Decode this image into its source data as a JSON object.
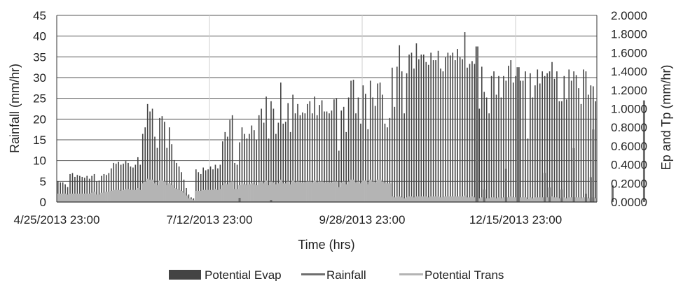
{
  "chart_data": {
    "type": "bar",
    "title": "",
    "xlabel": "Time (hrs)",
    "ylabel_left": "Rainfall (mm/hr)",
    "ylabel_right": "Ep and Tp (mm/hr)",
    "y_left_range": [
      0,
      45
    ],
    "y_right_range": [
      0,
      2.0
    ],
    "y_left_ticks": [
      "0",
      "5",
      "10",
      "15",
      "20",
      "25",
      "30",
      "35",
      "40",
      "45"
    ],
    "y_right_ticks": [
      "0.0000",
      "0.2000",
      "0.4000",
      "0.6000",
      "0.8000",
      "1.0000",
      "1.2000",
      "1.4000",
      "1.6000",
      "1.8000",
      "2.0000"
    ],
    "x_tick_labels": [
      "4/25/2013 23:00",
      "7/12/2013 23:00",
      "9/28/2013 23:00",
      "12/15/2013 23:00"
    ],
    "grid": "horizontal and vertical",
    "legend_position": "bottom",
    "series": [
      {
        "name": "Potential Evap",
        "axis": "right",
        "color": "#444444",
        "note": "daily peak value (mm/hr)",
        "values": [
          0.22,
          0.21,
          0.21,
          0.19,
          0.16,
          0.3,
          0.31,
          0.27,
          0.29,
          0.28,
          0.27,
          0.26,
          0.28,
          0.25,
          0.28,
          0.3,
          0.22,
          0.23,
          0.28,
          0.3,
          0.29,
          0.31,
          0.36,
          0.42,
          0.41,
          0.43,
          0.4,
          0.41,
          0.44,
          0.42,
          0.38,
          0.37,
          0.4,
          0.48,
          0.4,
          0.73,
          0.8,
          1.05,
          0.97,
          1.0,
          0.7,
          0.58,
          0.9,
          0.92,
          0.86,
          0.58,
          0.8,
          0.62,
          0.45,
          0.42,
          0.38,
          0.32,
          0.24,
          0.15,
          0.08,
          0.05,
          0.04,
          0.35,
          0.32,
          0.3,
          0.37,
          0.34,
          0.35,
          0.38,
          0.35,
          0.4,
          0.36,
          0.4,
          0.65,
          0.75,
          0.7,
          0.88,
          0.93,
          0.42,
          0.4,
          0.64,
          0.8,
          0.73,
          0.68,
          0.73,
          0.82,
          0.77,
          0.67,
          0.93,
          1.0,
          0.85,
          1.13,
          0.68,
          1.08,
          1.0,
          0.73,
          0.85,
          1.28,
          0.84,
          0.86,
          1.06,
          0.75,
          1.15,
          0.95,
          1.05,
          0.93,
          0.96,
          0.95,
          1.05,
          1.08,
          0.95,
          1.13,
          0.93,
          1.04,
          1.09,
          0.97,
          0.97,
          0.95,
          0.98,
          1.1,
          1.11,
          0.55,
          0.98,
          1.02,
          0.75,
          1.12,
          1.3,
          1.31,
          0.95,
          1.12,
          0.84,
          1.25,
          1.16,
          0.78,
          1.3,
          1.12,
          1.03,
          1.27,
          1.28,
          1.15,
          0.84,
          0.8,
          0.9,
          1.44,
          1.02,
          1.45,
          1.68,
          1.4,
          0.95,
          1.38,
          1.58,
          1.6,
          1.43,
          1.7,
          1.53,
          1.58,
          1.58,
          1.5,
          1.47,
          1.6,
          1.52,
          1.52,
          1.62,
          1.43,
          1.4,
          1.55,
          1.6,
          1.57,
          1.6,
          1.52,
          1.64,
          1.55,
          1.53,
          1.82,
          1.44,
          1.48,
          1.51,
          1.48,
          1.6,
          1.0,
          1.45,
          1.18,
          1.12,
          0.95,
          1.35,
          1.4,
          1.15,
          1.35,
          1.12,
          1.35,
          1.3,
          1.46,
          1.52,
          1.28,
          1.35,
          1.43,
          1.3,
          1.3,
          1.4,
          0.68,
          1.38,
          1.12,
          1.25,
          1.42,
          1.27,
          1.4,
          1.35,
          1.38,
          1.4,
          1.5,
          1.32,
          1.4,
          1.08,
          1.08,
          1.35,
          1.1,
          1.42,
          1.3,
          1.4,
          1.36,
          1.22,
          1.05,
          1.42,
          1.4,
          1.15,
          1.25,
          1.24,
          1.08
        ]
      },
      {
        "name": "Rainfall",
        "axis": "left",
        "color": "#6e6e6e",
        "note": "visible rainfall events (day index, mm/hr)",
        "events": [
          {
            "day": 75,
            "value": 1.0
          },
          {
            "day": 88,
            "value": 0.5
          },
          {
            "day": 173,
            "value": 37.5
          },
          {
            "day": 176,
            "value": 3.0
          },
          {
            "day": 185,
            "value": 8.0
          },
          {
            "day": 190,
            "value": 32.5
          },
          {
            "day": 201,
            "value": 7.0
          },
          {
            "day": 203,
            "value": 3.5
          },
          {
            "day": 208,
            "value": 3.0
          },
          {
            "day": 213,
            "value": 13.0
          },
          {
            "day": 218,
            "value": 2.0
          },
          {
            "day": 220,
            "value": 6.0
          },
          {
            "day": 221,
            "value": 17.5
          },
          {
            "day": 229,
            "value": 4.0
          },
          {
            "day": 242,
            "value": 24.5
          }
        ]
      },
      {
        "name": "Potential Trans",
        "axis": "right",
        "color": "#b4b4b4",
        "note": "daily peak value (mm/hr)",
        "values": [
          0.09,
          0.09,
          0.09,
          0.09,
          0.08,
          0.09,
          0.09,
          0.09,
          0.09,
          0.09,
          0.09,
          0.09,
          0.09,
          0.09,
          0.1,
          0.11,
          0.08,
          0.08,
          0.1,
          0.1,
          0.11,
          0.11,
          0.12,
          0.13,
          0.13,
          0.13,
          0.12,
          0.13,
          0.14,
          0.14,
          0.13,
          0.13,
          0.13,
          0.15,
          0.13,
          0.2,
          0.22,
          0.25,
          0.24,
          0.24,
          0.2,
          0.18,
          0.23,
          0.23,
          0.22,
          0.18,
          0.2,
          0.18,
          0.15,
          0.14,
          0.13,
          0.12,
          0.1,
          0.07,
          0.04,
          0.03,
          0.02,
          0.12,
          0.12,
          0.12,
          0.13,
          0.13,
          0.13,
          0.13,
          0.13,
          0.14,
          0.13,
          0.14,
          0.18,
          0.2,
          0.19,
          0.21,
          0.22,
          0.14,
          0.14,
          0.18,
          0.2,
          0.19,
          0.18,
          0.19,
          0.2,
          0.19,
          0.18,
          0.21,
          0.22,
          0.2,
          0.23,
          0.18,
          0.22,
          0.21,
          0.19,
          0.2,
          0.24,
          0.2,
          0.2,
          0.22,
          0.19,
          0.23,
          0.21,
          0.22,
          0.21,
          0.21,
          0.21,
          0.22,
          0.22,
          0.21,
          0.23,
          0.21,
          0.22,
          0.22,
          0.21,
          0.21,
          0.21,
          0.21,
          0.22,
          0.22,
          0.16,
          0.21,
          0.22,
          0.19,
          0.22,
          0.24,
          0.24,
          0.21,
          0.22,
          0.2,
          0.23,
          0.23,
          0.19,
          0.24,
          0.22,
          0.21,
          0.24,
          0.24,
          0.22,
          0.2,
          0.2,
          0.2,
          0.06,
          0.05,
          0.06,
          0.06,
          0.05,
          0.04,
          0.05,
          0.06,
          0.06,
          0.05,
          0.06,
          0.06,
          0.06,
          0.06,
          0.06,
          0.05,
          0.06,
          0.06,
          0.06,
          0.06,
          0.05,
          0.05,
          0.06,
          0.06,
          0.06,
          0.06,
          0.06,
          0.06,
          0.06,
          0.06,
          0.07,
          0.05,
          0.05,
          0.06,
          0.05,
          0.06,
          0.04,
          0.05,
          0.05,
          0.04,
          0.04,
          0.05,
          0.05,
          0.04,
          0.05,
          0.04,
          0.05,
          0.05,
          0.05,
          0.06,
          0.05,
          0.05,
          0.05,
          0.05,
          0.05,
          0.05,
          0.03,
          0.05,
          0.04,
          0.05,
          0.05,
          0.05,
          0.05,
          0.05,
          0.05,
          0.05,
          0.06,
          0.05,
          0.05,
          0.04,
          0.04,
          0.05,
          0.04,
          0.05,
          0.05,
          0.05,
          0.05,
          0.05,
          0.04,
          0.05,
          0.05,
          0.04,
          0.05,
          0.05,
          0.04
        ]
      }
    ]
  }
}
